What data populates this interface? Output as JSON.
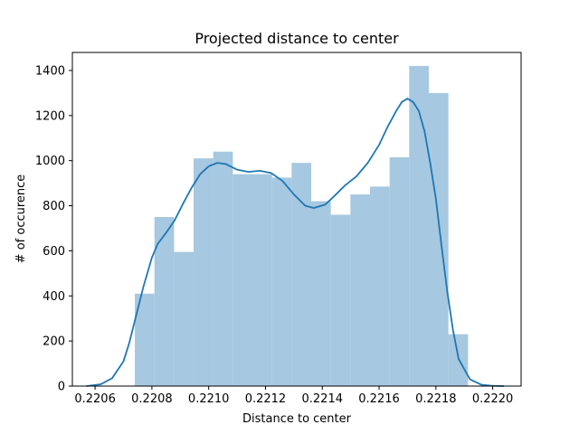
{
  "chart_data": {
    "type": "bar",
    "title": "Projected distance to center",
    "xlabel": "Distance to center",
    "ylabel": "# of occurence",
    "xlim": [
      0.22052,
      0.2221
    ],
    "ylim": [
      0,
      1480
    ],
    "x_ticks": [
      0.2206,
      0.2208,
      0.221,
      0.2212,
      0.2214,
      0.2216,
      0.2218,
      0.222
    ],
    "x_tick_labels": [
      "0.2206",
      "0.2208",
      "0.2210",
      "0.2212",
      "0.2214",
      "0.2216",
      "0.2218",
      "0.2220"
    ],
    "y_ticks": [
      0,
      200,
      400,
      600,
      800,
      1000,
      1200,
      1400
    ],
    "y_tick_labels": [
      "0",
      "200",
      "400",
      "600",
      "800",
      "1000",
      "1200",
      "1400"
    ],
    "grid": false,
    "bar_color": "#a6c8e0",
    "line_color": "#1f77b4",
    "series": [
      {
        "kind": "histogram",
        "bin_edges": [
          0.22074,
          0.220809,
          0.220878,
          0.220947,
          0.221016,
          0.221085,
          0.221154,
          0.221223,
          0.221292,
          0.221361,
          0.22143,
          0.221499,
          0.221568,
          0.221637,
          0.221706,
          0.221775,
          0.221844,
          0.221913
        ],
        "values": [
          410,
          750,
          595,
          1010,
          1040,
          940,
          940,
          925,
          990,
          820,
          760,
          850,
          885,
          1015,
          1420,
          1300,
          230
        ]
      },
      {
        "kind": "kde",
        "x": [
          0.22057,
          0.22062,
          0.22066,
          0.2207,
          0.22072,
          0.22074,
          0.22077,
          0.2208,
          0.22082,
          0.22085,
          0.22088,
          0.22091,
          0.22094,
          0.22097,
          0.221,
          0.22103,
          0.22106,
          0.2211,
          0.22114,
          0.22118,
          0.22122,
          0.22126,
          0.2213,
          0.22134,
          0.22137,
          0.22141,
          0.22144,
          0.22148,
          0.22152,
          0.22156,
          0.2216,
          0.22163,
          0.22166,
          0.22168,
          0.2217,
          0.22172,
          0.22174,
          0.22176,
          0.22178,
          0.2218,
          0.22182,
          0.22184,
          0.22186,
          0.22188,
          0.22192,
          0.22196,
          0.222,
          0.22204
        ],
        "y": [
          0,
          8,
          35,
          110,
          190,
          290,
          440,
          570,
          630,
          680,
          735,
          810,
          880,
          940,
          975,
          990,
          985,
          960,
          950,
          955,
          945,
          910,
          850,
          800,
          790,
          805,
          840,
          890,
          930,
          990,
          1070,
          1150,
          1220,
          1260,
          1275,
          1260,
          1220,
          1130,
          990,
          830,
          620,
          420,
          250,
          120,
          30,
          6,
          1,
          0
        ]
      }
    ]
  }
}
